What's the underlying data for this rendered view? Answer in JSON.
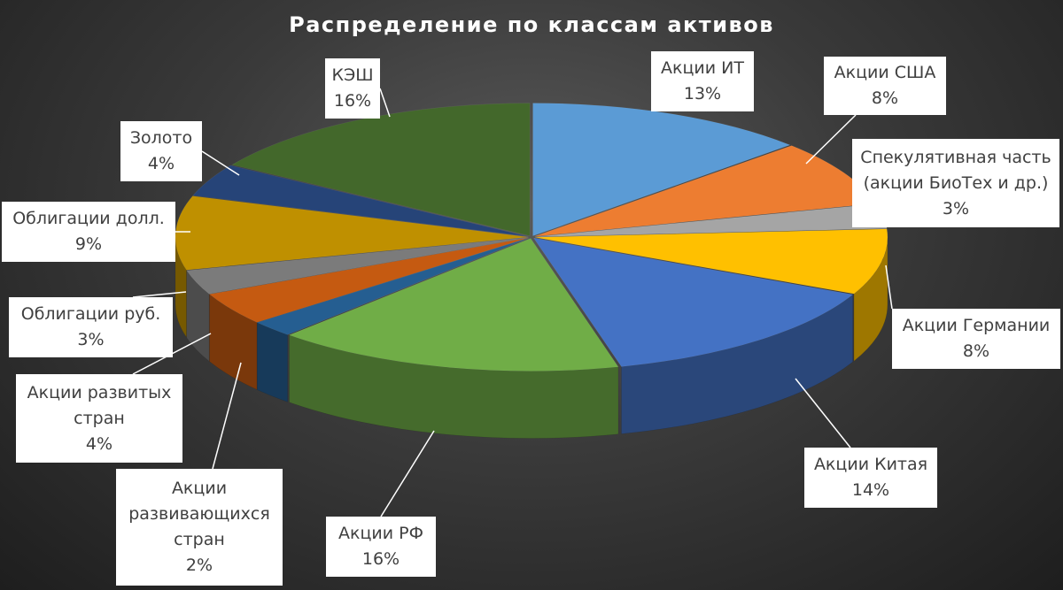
{
  "chart_data": {
    "type": "pie",
    "title": "Распределение по классам активов",
    "slices": [
      {
        "label": "Акции ИТ",
        "value": 13,
        "value_label": "13%",
        "color": "#5b9bd5"
      },
      {
        "label": "Акции США",
        "value": 8,
        "value_label": "8%",
        "color": "#ed7d31"
      },
      {
        "label": "Спекулятивная часть (акции БиоТех и др.)",
        "value": 3,
        "value_label": "3%",
        "color": "#a5a5a5"
      },
      {
        "label": "Акции Германии",
        "value": 8,
        "value_label": "8%",
        "color": "#ffc000"
      },
      {
        "label": "Акции Китая",
        "value": 14,
        "value_label": "14%",
        "color": "#4472c4"
      },
      {
        "label": "Акции РФ",
        "value": 16,
        "value_label": "16%",
        "color": "#70ad47"
      },
      {
        "label": "Акции развивающихся стран",
        "value": 2,
        "value_label": "2%",
        "color": "#255e91"
      },
      {
        "label": "Акции развитых стран",
        "value": 4,
        "value_label": "4%",
        "color": "#c55a11"
      },
      {
        "label": "Облигации руб.",
        "value": 3,
        "value_label": "3%",
        "color": "#7b7b7b"
      },
      {
        "label": "Облигации долл.",
        "value": 9,
        "value_label": "9%",
        "color": "#bf9000"
      },
      {
        "label": "Золото",
        "value": 4,
        "value_label": "4%",
        "color": "#264478"
      },
      {
        "label": "КЭШ",
        "value": 16,
        "value_label": "16%",
        "color": "#43682b"
      }
    ],
    "legend": "none",
    "style": "3d-exploded-pie"
  },
  "labels": {
    "it": {
      "line1": "Акции ИТ",
      "line2": "13%"
    },
    "usa": {
      "line1": "Акции США",
      "line2": "8%"
    },
    "spec": {
      "line1": "Спекулятивная часть",
      "line2": "(акции БиоТех и др.)",
      "line3": "3%"
    },
    "germany": {
      "line1": "Акции Германии",
      "line2": "8%"
    },
    "china": {
      "line1": "Акции Китая",
      "line2": "14%"
    },
    "rf": {
      "line1": "Акции РФ",
      "line2": "16%"
    },
    "emerging": {
      "line1": "Акции",
      "line2": "развивающихся",
      "line3": "стран",
      "line4": "2%"
    },
    "developed": {
      "line1": "Акции развитых",
      "line2": "стран",
      "line3": "4%"
    },
    "bonds_rub": {
      "line1": "Облигации руб.",
      "line2": "3%"
    },
    "bonds_usd": {
      "line1": "Облигации долл.",
      "line2": "9%"
    },
    "gold": {
      "line1": "Золото",
      "line2": "4%"
    },
    "cash": {
      "line1": "КЭШ",
      "line2": "16%"
    }
  }
}
